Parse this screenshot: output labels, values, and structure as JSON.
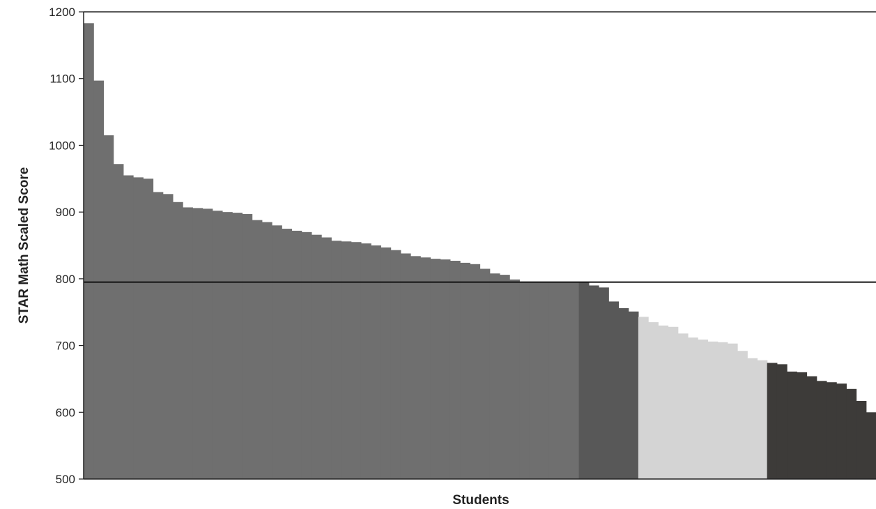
{
  "chart_data": {
    "type": "bar",
    "xlabel": "Students",
    "ylabel": "STAR Math Scaled Score",
    "ylim": [
      500,
      1200
    ],
    "yticks": [
      500,
      600,
      700,
      800,
      900,
      1000,
      1100,
      1200
    ],
    "reference_line": 795,
    "grid": false,
    "legend": "none",
    "series": [
      {
        "color": "#6f6f6f",
        "values": [
          1183,
          1097,
          1015,
          972,
          955,
          952,
          950,
          930,
          927,
          915,
          907,
          906,
          905,
          902,
          900,
          899,
          897,
          888,
          885,
          880,
          875,
          872,
          870,
          866,
          862,
          857,
          856,
          855,
          853,
          850,
          847,
          843,
          838,
          834,
          832,
          830,
          829,
          827,
          824,
          822,
          815,
          808,
          806,
          799,
          795,
          795,
          795,
          795,
          795,
          795
        ]
      },
      {
        "color": "#585858",
        "values": [
          795,
          790,
          787,
          766,
          756,
          751
        ]
      },
      {
        "color": "#d4d4d4",
        "values": [
          743,
          735,
          730,
          728,
          718,
          712,
          709,
          706,
          705,
          703,
          692,
          681,
          678
        ]
      },
      {
        "color": "#3d3b39",
        "values": [
          674,
          672,
          661,
          660,
          654,
          647,
          645,
          643,
          635,
          617,
          600
        ]
      }
    ]
  }
}
